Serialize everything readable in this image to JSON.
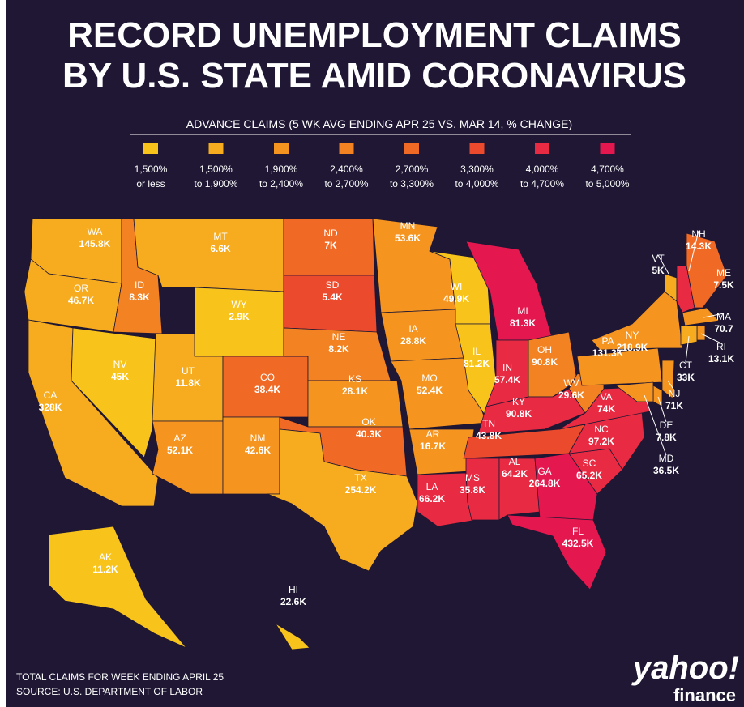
{
  "header": {
    "title_lines": [
      "RECORD UNEMPLOYMENT CLAIMS",
      "BY U.S. STATE AMID CORONAVIRUS"
    ],
    "subtitle": "ADVANCE CLAIMS (5 WK AVG ENDING APR 25 VS. MAR 14, % CHANGE)"
  },
  "legend": [
    {
      "color": "#f8c41c",
      "lines": [
        "1,500%",
        "or less"
      ]
    },
    {
      "color": "#f6ac1e",
      "lines": [
        "1,500%",
        "to 1,900%"
      ]
    },
    {
      "color": "#f59520",
      "lines": [
        "1,900%",
        "to 2,400%"
      ]
    },
    {
      "color": "#f38222",
      "lines": [
        "2,400%",
        "to 2,700%"
      ]
    },
    {
      "color": "#f06a25",
      "lines": [
        "2,700%",
        "to 3,300%"
      ]
    },
    {
      "color": "#ec4a2d",
      "lines": [
        "3,300%",
        "to 4,000%"
      ]
    },
    {
      "color": "#e82a42",
      "lines": [
        "4,000%",
        "to 4,700%"
      ]
    },
    {
      "color": "#e4174f",
      "lines": [
        "4,700%",
        "to 5,000%"
      ]
    }
  ],
  "states": [
    {
      "abbr": "WA",
      "claims": "145.8K",
      "class": 1
    },
    {
      "abbr": "OR",
      "claims": "46.7K",
      "class": 1
    },
    {
      "abbr": "CA",
      "claims": "328K",
      "class": 1
    },
    {
      "abbr": "NV",
      "claims": "45K",
      "class": 0
    },
    {
      "abbr": "ID",
      "claims": "8.3K",
      "class": 3
    },
    {
      "abbr": "MT",
      "claims": "6.6K",
      "class": 1
    },
    {
      "abbr": "WY",
      "claims": "2.9K",
      "class": 0
    },
    {
      "abbr": "UT",
      "claims": "11.8K",
      "class": 1
    },
    {
      "abbr": "CO",
      "claims": "38.4K",
      "class": 4
    },
    {
      "abbr": "AZ",
      "claims": "52.1K",
      "class": 2
    },
    {
      "abbr": "NM",
      "claims": "42.6K",
      "class": 2
    },
    {
      "abbr": "ND",
      "claims": "7K",
      "class": 4
    },
    {
      "abbr": "SD",
      "claims": "5.4K",
      "class": 5
    },
    {
      "abbr": "NE",
      "claims": "8.2K",
      "class": 3
    },
    {
      "abbr": "KS",
      "claims": "28.1K",
      "class": 2
    },
    {
      "abbr": "OK",
      "claims": "40.3K",
      "class": 4
    },
    {
      "abbr": "TX",
      "claims": "254.2K",
      "class": 1
    },
    {
      "abbr": "MN",
      "claims": "53.6K",
      "class": 2
    },
    {
      "abbr": "IA",
      "claims": "28.8K",
      "class": 2
    },
    {
      "abbr": "MO",
      "claims": "52.4K",
      "class": 2
    },
    {
      "abbr": "AR",
      "claims": "16.7K",
      "class": 2
    },
    {
      "abbr": "LA",
      "claims": "66.2K",
      "class": 6
    },
    {
      "abbr": "WI",
      "claims": "49.9K",
      "class": 0
    },
    {
      "abbr": "IL",
      "claims": "81.2K",
      "class": 0
    },
    {
      "abbr": "MI",
      "claims": "81.3K",
      "class": 7
    },
    {
      "abbr": "IN",
      "claims": "57.4K",
      "class": 6
    },
    {
      "abbr": "OH",
      "claims": "90.8K",
      "class": 3
    },
    {
      "abbr": "KY",
      "claims": "90.8K",
      "class": 6
    },
    {
      "abbr": "TN",
      "claims": "43.8K",
      "class": 5
    },
    {
      "abbr": "MS",
      "claims": "35.8K",
      "class": 6
    },
    {
      "abbr": "AL",
      "claims": "64.2K",
      "class": 6
    },
    {
      "abbr": "GA",
      "claims": "264.8K",
      "class": 7
    },
    {
      "abbr": "FL",
      "claims": "432.5K",
      "class": 7
    },
    {
      "abbr": "SC",
      "claims": "65.2K",
      "class": 6
    },
    {
      "abbr": "NC",
      "claims": "97.2K",
      "class": 6
    },
    {
      "abbr": "VA",
      "claims": "74K",
      "class": 6
    },
    {
      "abbr": "WV",
      "claims": "29.6K",
      "class": 3
    },
    {
      "abbr": "PA",
      "claims": "131.3K",
      "class": 2
    },
    {
      "abbr": "NY",
      "claims": "218.9K",
      "class": 2
    },
    {
      "abbr": "VT",
      "claims": "5K",
      "class": 1
    },
    {
      "abbr": "NH",
      "claims": "14.3K",
      "class": 6
    },
    {
      "abbr": "ME",
      "claims": "7.5K",
      "class": 4
    },
    {
      "abbr": "MA",
      "claims": "70.7",
      "class": 2
    },
    {
      "abbr": "RI",
      "claims": "13.1K",
      "class": 2
    },
    {
      "abbr": "CT",
      "claims": "33K",
      "class": 1
    },
    {
      "abbr": "NJ",
      "claims": "71K",
      "class": 2
    },
    {
      "abbr": "DE",
      "claims": "7.8K",
      "class": 2
    },
    {
      "abbr": "MD",
      "claims": "36.5K",
      "class": 2
    },
    {
      "abbr": "AK",
      "claims": "11.2K",
      "class": 0
    },
    {
      "abbr": "HI",
      "claims": "22.6K",
      "class": 0
    }
  ],
  "footer": {
    "note": "TOTAL CLAIMS FOR WEEK ENDING APRIL 25",
    "source": "SOURCE:  U.S. DEPARTMENT OF LABOR"
  },
  "logo": {
    "brand": "yahoo!",
    "product": "finance"
  }
}
